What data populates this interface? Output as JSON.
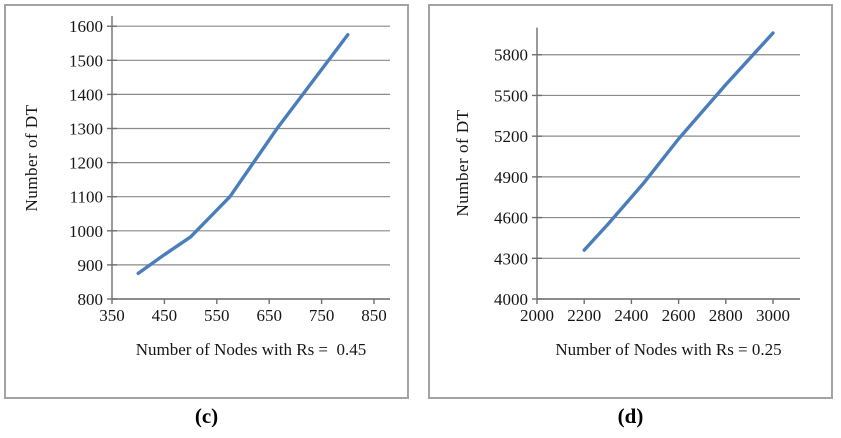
{
  "colors": {
    "line": "#4a7ebb",
    "grid": "#8a8a8a",
    "axis": "#6f6f6f",
    "text": "#161616",
    "panel_border": "#a3a3a3",
    "background": "#ffffff"
  },
  "chart_data": [
    {
      "type": "line",
      "caption": "(c)",
      "title": "",
      "xlabel": "Number of Nodes with Rs =  0.45",
      "ylabel": "Number of DT",
      "x": [
        400,
        450,
        500,
        575,
        665,
        800
      ],
      "y": [
        875,
        930,
        982,
        1100,
        1300,
        1575
      ],
      "xticks": [
        350,
        450,
        550,
        650,
        750,
        850
      ],
      "yticks": [
        800,
        900,
        1000,
        1100,
        1200,
        1300,
        1400,
        1500,
        1600
      ],
      "xlim": [
        350,
        880
      ],
      "ylim": [
        800,
        1630
      ],
      "grid": "horizontal",
      "legend": "none"
    },
    {
      "type": "line",
      "caption": "(d)",
      "title": "",
      "xlabel": "Number of Nodes with Rs = 0.25",
      "ylabel": "Number of DT",
      "x": [
        2200,
        2300,
        2450,
        2600,
        2800,
        3000
      ],
      "y": [
        4360,
        4550,
        4850,
        5180,
        5580,
        5960
      ],
      "xticks": [
        2000,
        2200,
        2400,
        2600,
        2800,
        3000
      ],
      "yticks": [
        4000,
        4300,
        4600,
        4900,
        5200,
        5500,
        5800
      ],
      "xlim": [
        2000,
        3115
      ],
      "ylim": [
        4000,
        6000
      ],
      "grid": "horizontal",
      "legend": "none"
    }
  ]
}
